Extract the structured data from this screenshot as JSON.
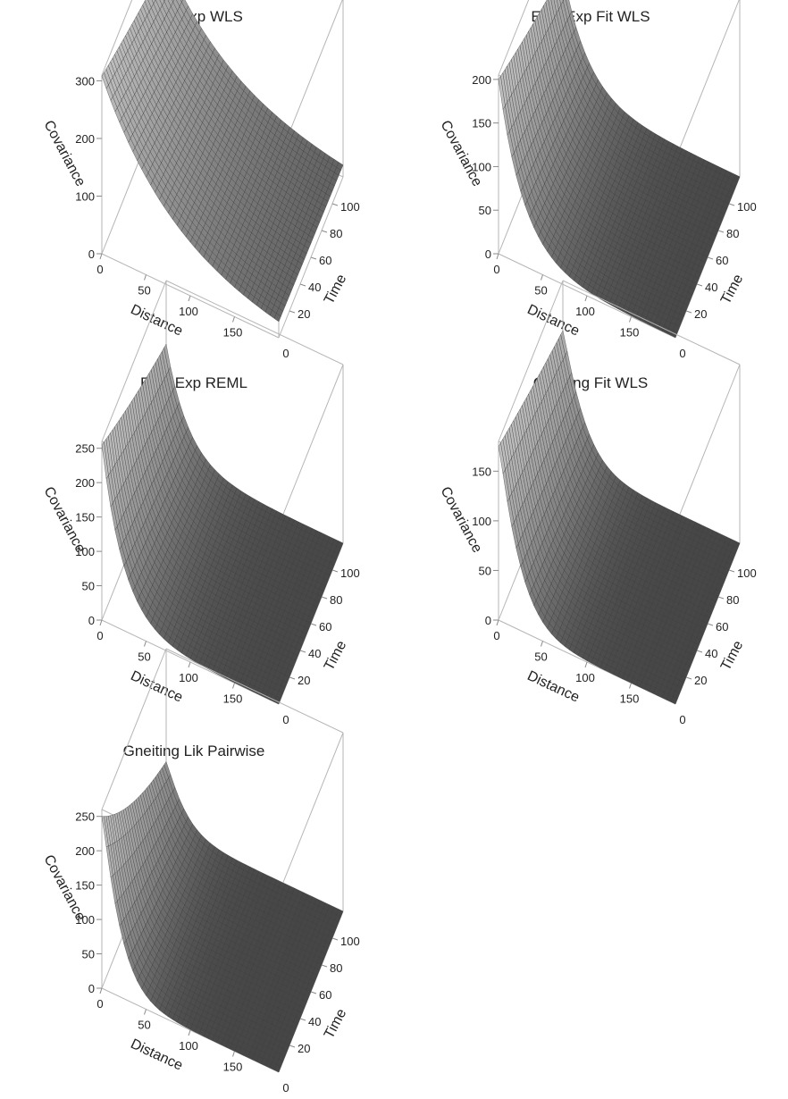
{
  "chart_data": [
    {
      "type": "surface",
      "title": "Exp_Exp WLS",
      "xlabel": "Distance",
      "ylabel": "Time",
      "zlabel": "Covariance",
      "x_ticks": [
        "0",
        "50",
        "100",
        "150"
      ],
      "y_ticks": [
        "20",
        "40",
        "60",
        "80",
        "100"
      ],
      "y_zero": "0",
      "z_ticks": [
        "0",
        "100",
        "200",
        "300"
      ],
      "xlim": [
        0,
        200
      ],
      "ylim": [
        0,
        120
      ],
      "zlim": [
        0,
        310
      ],
      "surface": {
        "c0": 308,
        "c_time_end": 228,
        "c_dist_end": 25,
        "c_far": 0,
        "dist_decay": 0.012,
        "time_decay": 0.0025,
        "shape": "exp"
      }
    },
    {
      "type": "surface",
      "title": "Exp_Exp Fit WLS",
      "xlabel": "Distance",
      "ylabel": "Time",
      "zlabel": "Covariance",
      "x_ticks": [
        "0",
        "50",
        "100",
        "150"
      ],
      "y_ticks": [
        "20",
        "40",
        "60",
        "80",
        "100"
      ],
      "y_zero": "0",
      "z_ticks": [
        "0",
        "50",
        "100",
        "150",
        "200"
      ],
      "xlim": [
        0,
        200
      ],
      "ylim": [
        0,
        120
      ],
      "zlim": [
        0,
        205
      ],
      "surface": {
        "c0": 200,
        "c_time_end": 145,
        "c_dist_end": 3,
        "c_far": 0,
        "dist_decay": 0.035,
        "time_decay": 0.003,
        "shape": "exp"
      }
    },
    {
      "type": "surface",
      "title": "Exp_Exp REML",
      "xlabel": "Distance",
      "ylabel": "Time",
      "zlabel": "Covariance",
      "x_ticks": [
        "0",
        "50",
        "100",
        "150"
      ],
      "y_ticks": [
        "20",
        "40",
        "60",
        "80",
        "100"
      ],
      "y_zero": "0",
      "z_ticks": [
        "0",
        "50",
        "100",
        "150",
        "200",
        "250"
      ],
      "xlim": [
        0,
        200
      ],
      "ylim": [
        0,
        120
      ],
      "zlim": [
        0,
        260
      ],
      "surface": {
        "c0": 255,
        "c_time_end": 170,
        "c_dist_end": 2,
        "c_far": 0,
        "dist_decay": 0.04,
        "time_decay": 0.0035,
        "shape": "exp"
      }
    },
    {
      "type": "surface",
      "title": "Gneiting Fit WLS",
      "xlabel": "Distance",
      "ylabel": "Time",
      "zlabel": "Covariance",
      "x_ticks": [
        "0",
        "50",
        "100",
        "150"
      ],
      "y_ticks": [
        "20",
        "40",
        "60",
        "80",
        "100"
      ],
      "y_zero": "0",
      "z_ticks": [
        "0",
        "50",
        "100",
        "150"
      ],
      "xlim": [
        0,
        200
      ],
      "ylim": [
        0,
        120
      ],
      "zlim": [
        0,
        180
      ],
      "surface": {
        "c0": 175,
        "c_time_end": 135,
        "c_dist_end": 2,
        "c_far": 0,
        "dist_decay": 0.04,
        "time_decay": 0.0025,
        "shape": "gneiting"
      }
    },
    {
      "type": "surface",
      "title": "Gneiting Lik Pairwise",
      "xlabel": "Distance",
      "ylabel": "Time",
      "zlabel": "Covariance",
      "x_ticks": [
        "0",
        "50",
        "100",
        "150"
      ],
      "y_ticks": [
        "20",
        "40",
        "60",
        "80",
        "100"
      ],
      "y_zero": "0",
      "z_ticks": [
        "0",
        "50",
        "100",
        "150",
        "200",
        "250"
      ],
      "xlim": [
        0,
        200
      ],
      "ylim": [
        0,
        120
      ],
      "zlim": [
        0,
        260
      ],
      "surface": {
        "c0": 250,
        "c_time_end": 105,
        "c_dist_end": 1,
        "c_far": 0,
        "dist_decay": 0.045,
        "time_decay": 0.008,
        "shape": "gneiting"
      }
    }
  ]
}
